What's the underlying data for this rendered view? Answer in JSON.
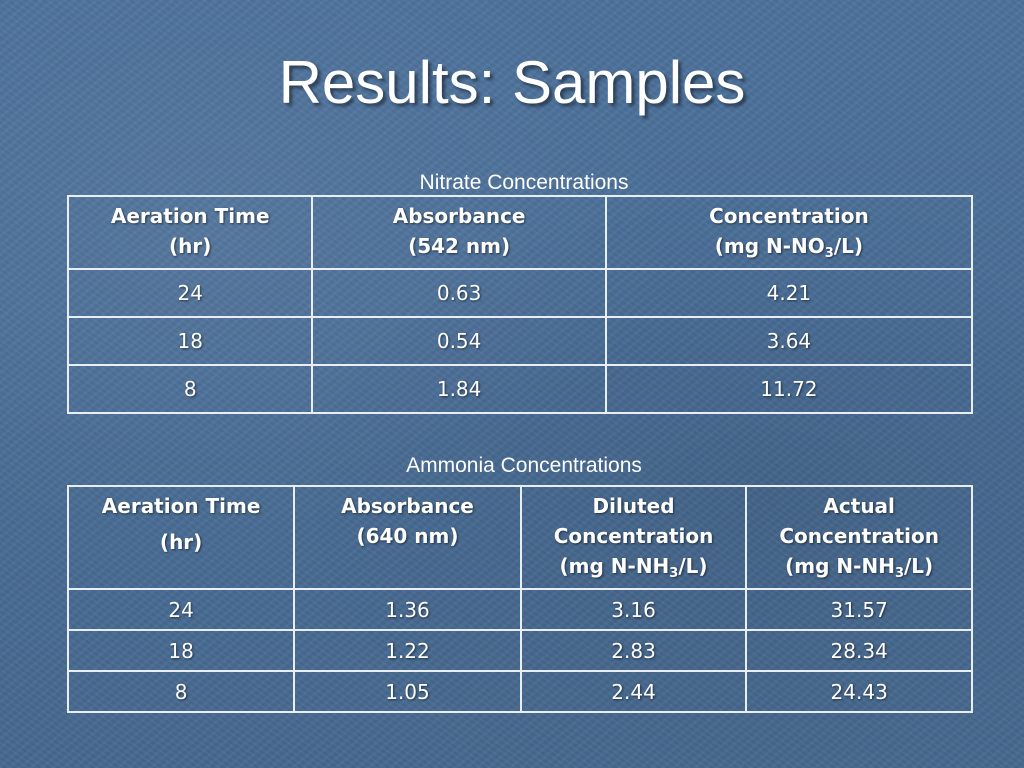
{
  "slide": {
    "title": "Results:  Samples"
  },
  "nitrate": {
    "caption": "Nitrate Concentrations",
    "headers": {
      "col1_line1": "Aeration Time",
      "col1_line2": "(hr)",
      "col2_line1": "Absorbance",
      "col2_line2": "(542 nm)",
      "col3_line1": "Concentration",
      "col3_line2_pre": "(mg N-NO",
      "col3_line2_sub": "3",
      "col3_line2_post": "/L)"
    },
    "rows": [
      {
        "time": "24",
        "absorbance": "0.63",
        "concentration": "4.21"
      },
      {
        "time": "18",
        "absorbance": "0.54",
        "concentration": "3.64"
      },
      {
        "time": "8",
        "absorbance": "1.84",
        "concentration": "11.72"
      }
    ]
  },
  "ammonia": {
    "caption": "Ammonia Concentrations",
    "headers": {
      "col1_line1": "Aeration Time",
      "col1_line2": "(hr)",
      "col2_line1": "Absorbance",
      "col2_line2": "(640 nm)",
      "col3_line1": "Diluted",
      "col3_line2": "Concentration",
      "col3_line3_pre": "(mg N-NH",
      "col3_line3_sub": "3",
      "col3_line3_post": "/L)",
      "col4_line1": "Actual",
      "col4_line2": "Concentration",
      "col4_line3_pre": "(mg N-NH",
      "col4_line3_sub": "3",
      "col4_line3_post": "/L)"
    },
    "rows": [
      {
        "time": "24",
        "absorbance": "1.36",
        "diluted": "3.16",
        "actual": "31.57"
      },
      {
        "time": "18",
        "absorbance": "1.22",
        "diluted": "2.83",
        "actual": "28.34"
      },
      {
        "time": "8",
        "absorbance": "1.05",
        "diluted": "2.44",
        "actual": "24.43"
      }
    ]
  }
}
